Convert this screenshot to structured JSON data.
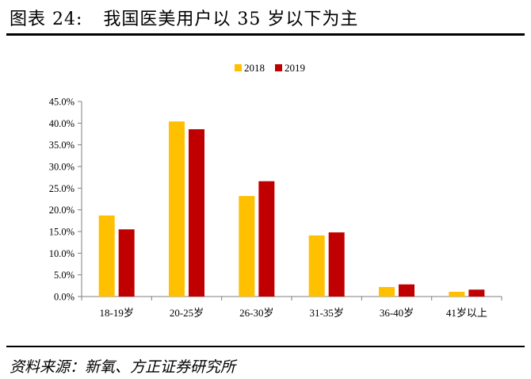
{
  "figure": {
    "label": "图表 24:",
    "title": "我国医美用户以 35 岁以下为主",
    "source": "资料来源：新氧、方正证券研究所"
  },
  "colors": {
    "s2018": "#FFC000",
    "s2019": "#C00000",
    "axis": "#7f7f7f"
  },
  "chart_data": {
    "type": "bar",
    "categories": [
      "18-19岁",
      "20-25岁",
      "26-30岁",
      "31-35岁",
      "36-40岁",
      "41岁以上"
    ],
    "series": [
      {
        "name": "2018",
        "values": [
          18.7,
          40.4,
          23.2,
          14.1,
          2.2,
          1.1
        ]
      },
      {
        "name": "2019",
        "values": [
          15.5,
          38.6,
          26.6,
          14.8,
          2.8,
          1.6
        ]
      }
    ],
    "yticks": [
      "0.0%",
      "5.0%",
      "10.0%",
      "15.0%",
      "20.0%",
      "25.0%",
      "30.0%",
      "35.0%",
      "40.0%",
      "45.0%"
    ],
    "ylim": [
      0,
      45
    ],
    "legend_position": "top-center",
    "grid": false
  }
}
